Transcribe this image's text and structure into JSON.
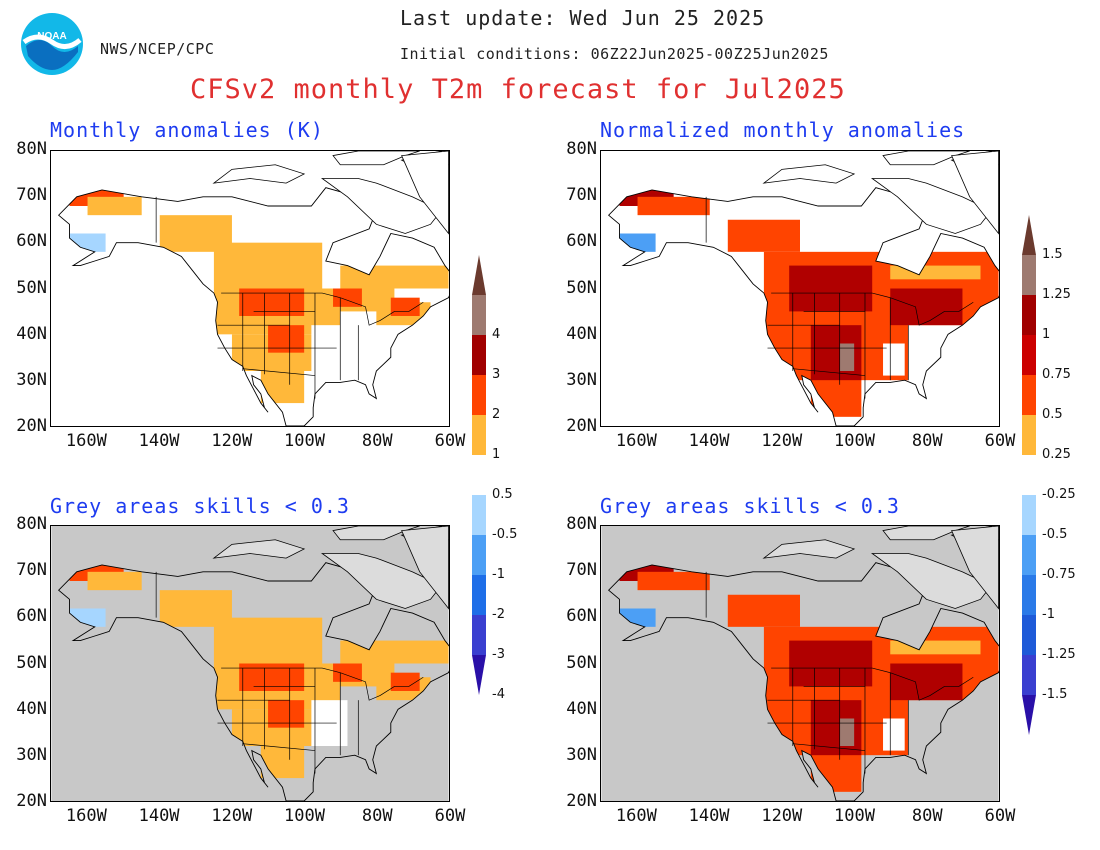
{
  "header": {
    "agency": "NWS/NCEP/CPC",
    "last_update": "Last update: Wed Jun 25 2025",
    "initial_conditions": "Initial conditions: 06Z22Jun2025-00Z25Jun2025",
    "title": "CFSv2 monthly T2m forecast for Jul2025",
    "logo_text": "NOAA"
  },
  "panels": [
    {
      "id": "tl",
      "title": "Monthly anomalies (K)",
      "grey_mask": false,
      "normalized": false
    },
    {
      "id": "tr",
      "title": "Normalized monthly anomalies",
      "grey_mask": false,
      "normalized": true
    },
    {
      "id": "bl",
      "title": "Grey areas skills < 0.3",
      "grey_mask": true,
      "normalized": false
    },
    {
      "id": "br",
      "title": "Grey areas skills < 0.3",
      "grey_mask": true,
      "normalized": true
    }
  ],
  "axes": {
    "lat_labels": [
      "80N",
      "70N",
      "60N",
      "50N",
      "40N",
      "30N",
      "20N"
    ],
    "lon_labels": [
      "160W",
      "140W",
      "120W",
      "100W",
      "80W",
      "60W"
    ],
    "lat_range": [
      20,
      80
    ],
    "lon_range": [
      -170,
      -60
    ]
  },
  "colorbars": {
    "absolute": {
      "labels": [
        "4",
        "3",
        "2",
        "1",
        "0.5",
        "-0.5",
        "-1",
        "-2",
        "-3",
        "-4"
      ]
    },
    "normalized": {
      "labels": [
        "1.5",
        "1.25",
        "1",
        "0.75",
        "0.5",
        "0.25",
        "-0.25",
        "-0.5",
        "-0.75",
        "-1",
        "-1.25",
        "-1.5"
      ]
    },
    "colors": {
      "top_arrow": "#6b3a2e",
      "warm": [
        "#9e7a70",
        "#a10000",
        "#ff4400",
        "#ffb83a"
      ],
      "neutral": "#ffffff",
      "cool": [
        "#a6d6ff",
        "#4c9ff5",
        "#1e6ee8",
        "#3a3fd0"
      ],
      "bottom_arrow": "#2a10a8"
    }
  },
  "map_colors": {
    "grey": "#c8c8c8",
    "light_orange": "#ffb83a",
    "orange_red": "#ff4400",
    "dark_red": "#b00000",
    "brown": "#9e7a70",
    "light_blue": "#a6d6ff",
    "blue": "#4c9ff5"
  }
}
